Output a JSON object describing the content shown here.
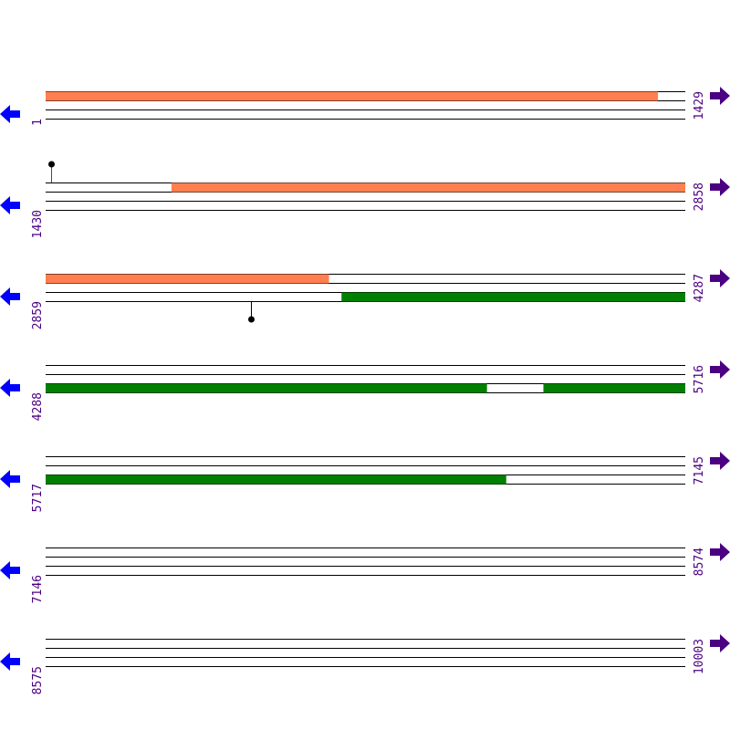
{
  "colors": {
    "orange": "#ff7f50",
    "green": "#008000",
    "left_arrow": "#0000ff",
    "right_arrow": "#4b0082",
    "label": "#4b0082",
    "marker_red": "#ff0000",
    "marker_black": "#000000"
  },
  "rows": [
    {
      "start": "1",
      "end": "1429"
    },
    {
      "start": "1430",
      "end": "2858"
    },
    {
      "start": "2859",
      "end": "4287"
    },
    {
      "start": "4288",
      "end": "5716"
    },
    {
      "start": "5717",
      "end": "7145"
    },
    {
      "start": "7146",
      "end": "8574"
    },
    {
      "start": "8575",
      "end": "10003"
    }
  ],
  "features": [
    {
      "strand": "forward",
      "color": "orange",
      "from": 1,
      "to": 1368
    },
    {
      "strand": "forward",
      "color": "orange",
      "from": 1711,
      "to": 2858
    },
    {
      "strand": "forward",
      "color": "orange",
      "from": 2859,
      "to": 3491
    },
    {
      "strand": "reverse",
      "color": "green",
      "from": 3520,
      "to": 4287
    },
    {
      "strand": "reverse",
      "color": "green",
      "from": 4288,
      "to": 5273
    },
    {
      "strand": "reverse",
      "color": "green",
      "from": 5400,
      "to": 5716
    },
    {
      "strand": "reverse",
      "color": "green",
      "from": 5717,
      "to": 6745
    }
  ],
  "markers": [
    {
      "position": 1442,
      "strand": "forward",
      "color": "marker_red"
    },
    {
      "position": 3318,
      "strand": "reverse",
      "color": "marker_black"
    }
  ],
  "icons": {
    "left": "arrow-left-icon",
    "right": "arrow-right-icon"
  }
}
